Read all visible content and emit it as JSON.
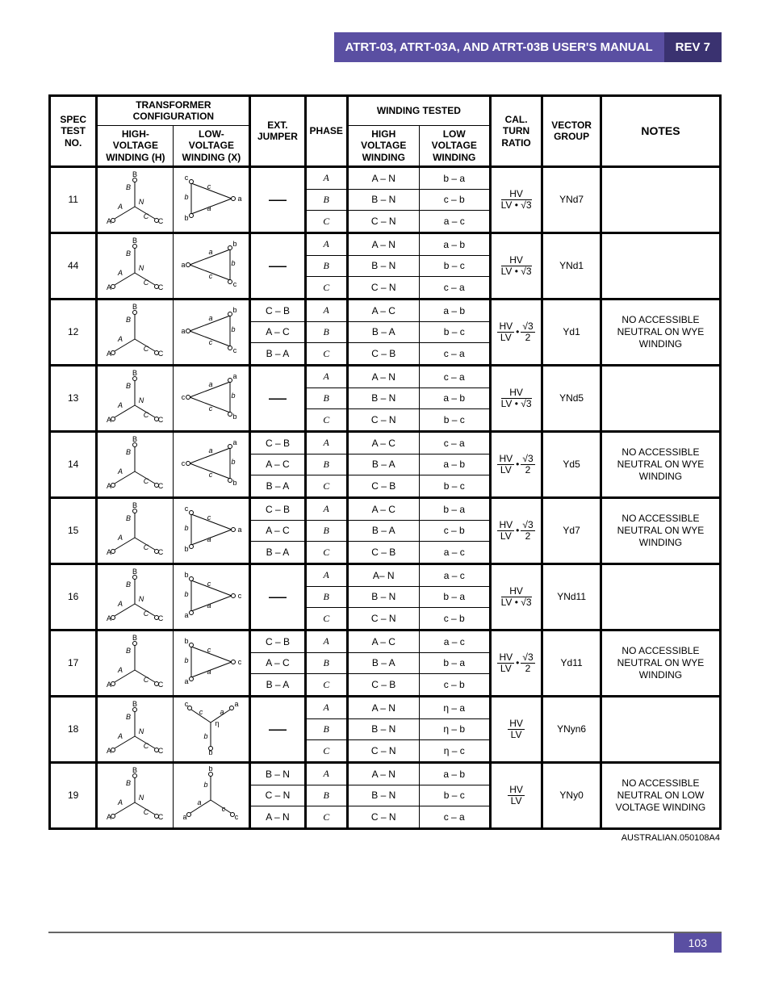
{
  "header": {
    "title": "ATRT-03, ATRT-03A, AND ATRT-03B USER'S MANUAL",
    "rev": "REV 7"
  },
  "table": {
    "headers": {
      "transformer_config": "TRANSFORMER CONFIGURATION",
      "spec_test_no": "SPEC TEST NO.",
      "hv_winding": "HIGH-VOLTAGE WINDING (H)",
      "lv_winding": "LOW-VOLTAGE WINDING (X)",
      "ext_jumper": "EXT. JUMPER",
      "phase": "PHASE",
      "winding_tested": "WINDING TESTED",
      "hv_tested": "HIGH VOLTAGE WINDING",
      "lv_tested": "LOW VOLTAGE WINDING",
      "cal_turn_ratio": "CAL. TURN RATIO",
      "vector_group": "VECTOR GROUP",
      "notes": "NOTES"
    },
    "rows": [
      {
        "spec": "11",
        "ext_jumper": "—",
        "phases": [
          "A",
          "B",
          "C"
        ],
        "hv": [
          "A – N",
          "B – N",
          "C – N"
        ],
        "lv": [
          "b – a",
          "c – b",
          "a – c"
        ],
        "cal": {
          "type": "hv_lv_sqrt3"
        },
        "vector": "YNd7",
        "notes": "",
        "hv_diagram": "wye_with_n",
        "lv_diagram": "delta_cba_a_right"
      },
      {
        "spec": "44",
        "ext_jumper": "—",
        "phases": [
          "A",
          "B",
          "C"
        ],
        "hv": [
          "A – N",
          "B – N",
          "C – N"
        ],
        "lv": [
          "a – b",
          "b – c",
          "c – a"
        ],
        "cal": {
          "type": "hv_lv_sqrt3"
        },
        "vector": "YNd1",
        "notes": "",
        "hv_diagram": "wye_with_n",
        "lv_diagram": "delta_a_left_bc_right"
      },
      {
        "spec": "12",
        "ext_jumper": [
          "C – B",
          "A – C",
          "B – A"
        ],
        "phases": [
          "A",
          "B",
          "C"
        ],
        "hv": [
          "A – C",
          "B – A",
          "C – B"
        ],
        "lv": [
          "a – b",
          "b – c",
          "c – a"
        ],
        "cal": {
          "type": "hv_lv_sqrt3_2"
        },
        "vector": "Yd1",
        "notes": "NO ACCESSIBLE NEUTRAL ON WYE WINDING",
        "hv_diagram": "wye_no_n",
        "lv_diagram": "delta_a_left_bc_right"
      },
      {
        "spec": "13",
        "ext_jumper": "—",
        "phases": [
          "A",
          "B",
          "C"
        ],
        "hv": [
          "A – N",
          "B – N",
          "C – N"
        ],
        "lv": [
          "c – a",
          "a – b",
          "b – c"
        ],
        "cal": {
          "type": "hv_lv_sqrt3"
        },
        "vector": "YNd5",
        "notes": "",
        "hv_diagram": "wye_with_n",
        "lv_diagram": "delta_c_left_ab_right"
      },
      {
        "spec": "14",
        "ext_jumper": [
          "C – B",
          "A – C",
          "B – A"
        ],
        "phases": [
          "A",
          "B",
          "C"
        ],
        "hv": [
          "A – C",
          "B – A",
          "C – B"
        ],
        "lv": [
          "c – a",
          "a – b",
          "b – c"
        ],
        "cal": {
          "type": "hv_lv_sqrt3_2"
        },
        "vector": "Yd5",
        "notes": "NO ACCESSIBLE NEUTRAL ON WYE WINDING",
        "hv_diagram": "wye_no_n",
        "lv_diagram": "delta_c_left_ab_right"
      },
      {
        "spec": "15",
        "ext_jumper": [
          "C – B",
          "A – C",
          "B – A"
        ],
        "phases": [
          "A",
          "B",
          "C"
        ],
        "hv": [
          "A – C",
          "B – A",
          "C – B"
        ],
        "lv": [
          "b – a",
          "c – b",
          "a – c"
        ],
        "cal": {
          "type": "hv_lv_sqrt3_2"
        },
        "vector": "Yd7",
        "notes": "NO ACCESSIBLE NEUTRAL ON WYE WINDING",
        "hv_diagram": "wye_no_n",
        "lv_diagram": "delta_cba_a_right_v2"
      },
      {
        "spec": "16",
        "ext_jumper": "—",
        "phases": [
          "A",
          "B",
          "C"
        ],
        "hv": [
          "A– N",
          "B – N",
          "C – N"
        ],
        "lv": [
          "a – c",
          "b – a",
          "c – b"
        ],
        "cal": {
          "type": "hv_lv_sqrt3"
        },
        "vector": "YNd11",
        "notes": "",
        "hv_diagram": "wye_with_n",
        "lv_diagram": "delta_b_tl_c_right"
      },
      {
        "spec": "17",
        "ext_jumper": [
          "C – B",
          "A – C",
          "B – A"
        ],
        "phases": [
          "A",
          "B",
          "C"
        ],
        "hv": [
          "A – C",
          "B – A",
          "C – B"
        ],
        "lv": [
          "a – c",
          "b – a",
          "c – b"
        ],
        "cal": {
          "type": "hv_lv_sqrt3_2"
        },
        "vector": "Yd11",
        "notes": "NO ACCESSIBLE NEUTRAL ON WYE WINDING",
        "hv_diagram": "wye_no_n",
        "lv_diagram": "delta_b_tl_c_right"
      },
      {
        "spec": "18",
        "ext_jumper": "—",
        "phases": [
          "A",
          "B",
          "C"
        ],
        "hv": [
          "A – N",
          "B – N",
          "C – N"
        ],
        "lv": [
          "η – a",
          "η – b",
          "η – c"
        ],
        "cal": {
          "type": "hv_lv"
        },
        "vector": "YNyn6",
        "notes": "",
        "hv_diagram": "wye_with_n",
        "lv_diagram": "wye_inv_with_eta"
      },
      {
        "spec": "19",
        "ext_jumper": [
          "B – N",
          "C – N",
          "A – N"
        ],
        "phases": [
          "A",
          "B",
          "C"
        ],
        "hv": [
          "A – N",
          "B – N",
          "C – N"
        ],
        "lv": [
          "a – b",
          "b – c",
          "c – a"
        ],
        "cal": {
          "type": "hv_lv"
        },
        "vector": "YNy0",
        "notes": "NO ACCESSIBLE NEUTRAL ON LOW VOLTAGE WINDING",
        "hv_diagram": "wye_with_n",
        "lv_diagram": "wye_lc_no_n"
      }
    ]
  },
  "source_note": "AUSTRALIAN.050108A4",
  "page_number": "103",
  "colors": {
    "header_bg": "#5a4fa2",
    "header_rev_bg": "#3a3270",
    "border": "#000000",
    "text": "#000000"
  }
}
